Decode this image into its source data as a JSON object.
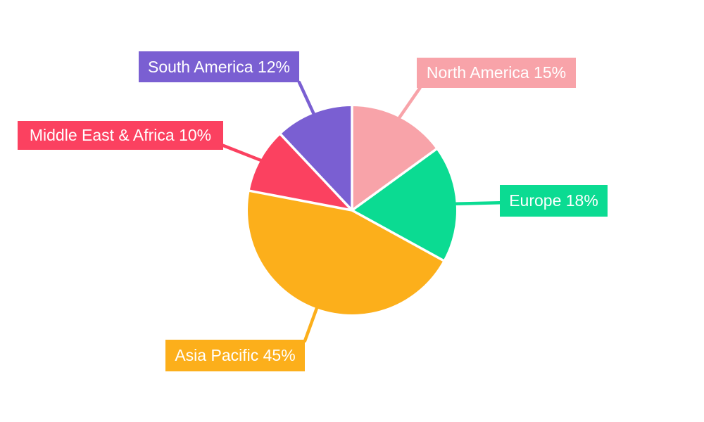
{
  "chart_data": {
    "type": "pie",
    "title": "",
    "start_angle_deg": 0,
    "direction": "clockwise",
    "background": "#FFFFFF",
    "label_text_color": "#FFFFFF",
    "percent_suffix": "%",
    "slices": [
      {
        "label": "North America",
        "value": 15,
        "color": "#F8A3A9"
      },
      {
        "label": "Europe",
        "value": 18,
        "color": "#0BDB92"
      },
      {
        "label": "Asia Pacific",
        "value": 45,
        "color": "#FCAF1B"
      },
      {
        "label": "Middle East & Africa",
        "value": 10,
        "color": "#FB4160"
      },
      {
        "label": "South America",
        "value": 12,
        "color": "#7A5FD2"
      }
    ]
  }
}
